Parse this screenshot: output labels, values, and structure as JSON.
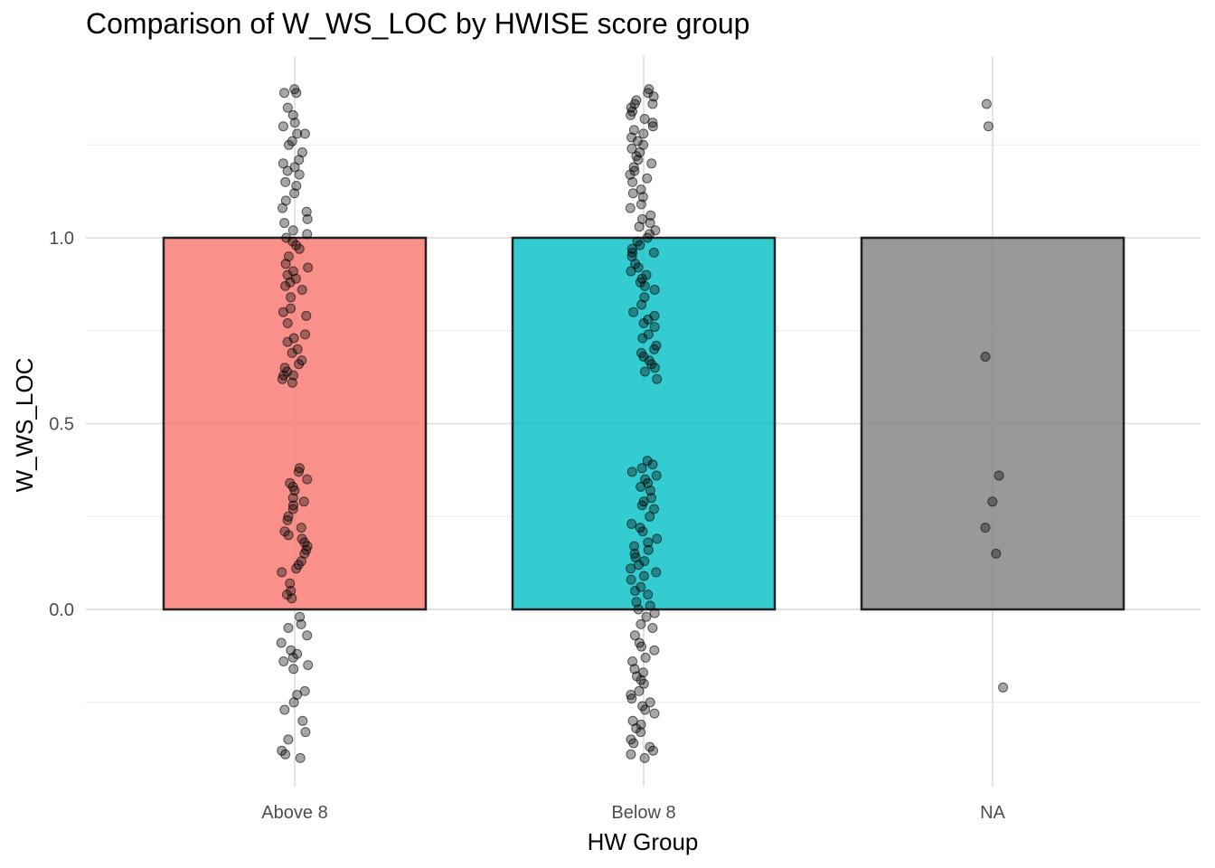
{
  "chart_data": {
    "type": "bar",
    "title": "Comparison of W_WS_LOC by HWISE score group",
    "xlabel": "HW Group",
    "ylabel": "W_WS_LOC",
    "categories": [
      "Above 8",
      "Below 8",
      "NA"
    ],
    "values": [
      1.0,
      1.0,
      1.0
    ],
    "bar_colors": [
      "#f8766d",
      "#00bfc4",
      "#7f7f7f"
    ],
    "ylim": [
      -0.48,
      1.49
    ],
    "yticks": [
      0.0,
      0.5,
      1.0
    ],
    "ytick_labels": [
      "0.0",
      "0.5",
      "1.0"
    ],
    "grid": true,
    "legend": "none",
    "jitter_points": {
      "Above 8": [
        1.4,
        1.39,
        1.39,
        1.35,
        1.33,
        1.31,
        1.3,
        1.28,
        1.28,
        1.26,
        1.25,
        1.23,
        1.21,
        1.2,
        1.19,
        1.18,
        1.17,
        1.15,
        1.14,
        1.12,
        1.1,
        1.08,
        1.07,
        1.05,
        1.04,
        1.02,
        1.01,
        1.0,
        0.99,
        0.98,
        0.97,
        0.95,
        0.93,
        0.92,
        0.91,
        0.9,
        0.89,
        0.88,
        0.87,
        0.86,
        0.84,
        0.81,
        0.8,
        0.79,
        0.77,
        0.74,
        0.73,
        0.72,
        0.7,
        0.69,
        0.67,
        0.66,
        0.65,
        0.64,
        0.63,
        0.63,
        0.62,
        0.61,
        0.38,
        0.37,
        0.35,
        0.34,
        0.33,
        0.32,
        0.3,
        0.29,
        0.28,
        0.27,
        0.25,
        0.24,
        0.22,
        0.21,
        0.2,
        0.19,
        0.18,
        0.17,
        0.16,
        0.15,
        0.13,
        0.12,
        0.11,
        0.1,
        0.07,
        0.05,
        0.04,
        0.03,
        -0.02,
        -0.04,
        -0.05,
        -0.07,
        -0.09,
        -0.11,
        -0.12,
        -0.13,
        -0.14,
        -0.15,
        -0.16,
        -0.22,
        -0.23,
        -0.25,
        -0.27,
        -0.3,
        -0.33,
        -0.35,
        -0.38,
        -0.39,
        -0.4
      ],
      "Below 8": [
        1.4,
        1.39,
        1.38,
        1.37,
        1.36,
        1.36,
        1.35,
        1.34,
        1.33,
        1.32,
        1.31,
        1.3,
        1.29,
        1.28,
        1.27,
        1.26,
        1.25,
        1.24,
        1.23,
        1.22,
        1.21,
        1.2,
        1.19,
        1.18,
        1.17,
        1.16,
        1.15,
        1.13,
        1.12,
        1.11,
        1.09,
        1.08,
        1.06,
        1.05,
        1.04,
        1.03,
        1.02,
        1.01,
        1.0,
        0.99,
        0.98,
        0.97,
        0.96,
        0.96,
        0.95,
        0.93,
        0.92,
        0.91,
        0.9,
        0.89,
        0.88,
        0.87,
        0.86,
        0.84,
        0.82,
        0.8,
        0.79,
        0.78,
        0.77,
        0.76,
        0.74,
        0.73,
        0.71,
        0.7,
        0.69,
        0.68,
        0.67,
        0.66,
        0.65,
        0.64,
        0.62,
        0.4,
        0.39,
        0.38,
        0.37,
        0.36,
        0.35,
        0.34,
        0.33,
        0.32,
        0.3,
        0.29,
        0.28,
        0.27,
        0.25,
        0.23,
        0.22,
        0.21,
        0.19,
        0.18,
        0.17,
        0.16,
        0.15,
        0.14,
        0.13,
        0.12,
        0.11,
        0.1,
        0.09,
        0.08,
        0.06,
        0.05,
        0.04,
        0.02,
        0.01,
        0.0,
        -0.01,
        -0.02,
        -0.04,
        -0.05,
        -0.07,
        -0.09,
        -0.1,
        -0.11,
        -0.13,
        -0.14,
        -0.16,
        -0.17,
        -0.18,
        -0.19,
        -0.2,
        -0.22,
        -0.23,
        -0.24,
        -0.25,
        -0.26,
        -0.27,
        -0.28,
        -0.3,
        -0.31,
        -0.32,
        -0.33,
        -0.35,
        -0.36,
        -0.37,
        -0.38,
        -0.39,
        -0.4
      ],
      "NA": [
        1.36,
        1.3,
        0.68,
        0.36,
        0.29,
        0.22,
        0.15,
        -0.21
      ]
    }
  }
}
